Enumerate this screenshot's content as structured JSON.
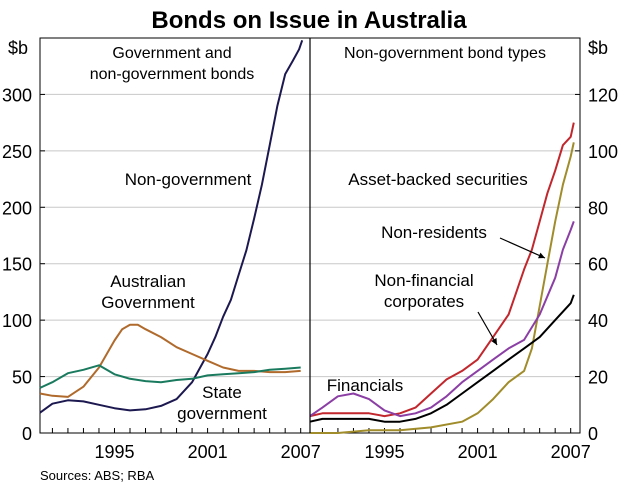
{
  "title": "Bonds on Issue in Australia",
  "source": "Sources: ABS; RBA",
  "chart_data": [
    {
      "type": "line",
      "subtitle": [
        "Government and",
        "non-government bonds"
      ],
      "yunit": "$b",
      "ylim": [
        0,
        350
      ],
      "yticks": [
        0,
        50,
        100,
        150,
        200,
        250,
        300
      ],
      "xlim": [
        1990.2,
        2007.6
      ],
      "xticks": [
        1995,
        2001,
        2007
      ],
      "grid": true,
      "series": [
        {
          "name": "Non-government",
          "label_lines": [
            "Non-government"
          ],
          "color": "#1c1850",
          "x": [
            1990.2,
            1991,
            1992,
            1993,
            1994,
            1995,
            1996,
            1997,
            1998,
            1999,
            2000,
            2001,
            2001.5,
            2002,
            2002.5,
            2003,
            2003.5,
            2004,
            2004.5,
            2005,
            2005.5,
            2006,
            2006.5,
            2006.9,
            2007.1
          ],
          "y": [
            18,
            26,
            29,
            28,
            25,
            22,
            20,
            21,
            24,
            30,
            45,
            70,
            85,
            103,
            118,
            140,
            162,
            190,
            220,
            255,
            290,
            318,
            330,
            340,
            348
          ]
        },
        {
          "name": "Australian Government",
          "label_lines": [
            "Australian",
            "Government"
          ],
          "color": "#b06a2c",
          "x": [
            1990.2,
            1991,
            1992,
            1993,
            1994,
            1995,
            1995.5,
            1996,
            1996.5,
            1997,
            1998,
            1999,
            2000,
            2001,
            2002,
            2003,
            2004,
            2005,
            2006,
            2007
          ],
          "y": [
            35,
            33,
            32,
            41,
            58,
            82,
            92,
            96,
            96,
            92,
            85,
            76,
            70,
            64,
            58,
            55,
            55,
            54,
            54,
            55
          ]
        },
        {
          "name": "State government",
          "label_lines": [
            "State",
            "government"
          ],
          "color": "#1a7a5e",
          "x": [
            1990.2,
            1991,
            1992,
            1993,
            1994,
            1995,
            1996,
            1997,
            1998,
            1999,
            2000,
            2001,
            2002,
            2003,
            2004,
            2005,
            2006,
            2007
          ],
          "y": [
            40,
            45,
            53,
            56,
            60,
            52,
            48,
            46,
            45,
            47,
            48,
            51,
            52,
            53,
            54,
            56,
            57,
            58
          ]
        }
      ]
    },
    {
      "type": "line",
      "subtitle": [
        "Non-government bond types"
      ],
      "yunit": "$b",
      "ylim": [
        0,
        140
      ],
      "yticks": [
        0,
        20,
        40,
        60,
        80,
        100,
        120
      ],
      "xlim": [
        1990.2,
        2007.6
      ],
      "xticks": [
        1995,
        2001,
        2007
      ],
      "grid": true,
      "series": [
        {
          "name": "Asset-backed securities",
          "label_lines": [
            "Asset-backed securities"
          ],
          "color": "#c1272d",
          "x": [
            1990.2,
            1991,
            1992,
            1993,
            1994,
            1995,
            1996,
            1997,
            1998,
            1999,
            2000,
            2001,
            2002,
            2003,
            2003.5,
            2004,
            2004.5,
            2005,
            2005.5,
            2006,
            2006.5,
            2007,
            2007.2
          ],
          "y": [
            6,
            7,
            7,
            7,
            7,
            6,
            7,
            9,
            14,
            19,
            22,
            26,
            34,
            42,
            50,
            58,
            65,
            75,
            85,
            93,
            102,
            105,
            110
          ]
        },
        {
          "name": "Non-residents",
          "label_lines": [
            "Non-residents"
          ],
          "color": "#a08c2a",
          "x": [
            1990.2,
            1992,
            1994,
            1996,
            1998,
            2000,
            2001,
            2002,
            2003,
            2004,
            2004.5,
            2005,
            2005.5,
            2006,
            2006.5,
            2007,
            2007.2
          ],
          "y": [
            0,
            0,
            1,
            1,
            2,
            4,
            7,
            12,
            18,
            22,
            30,
            45,
            60,
            75,
            88,
            98,
            103
          ]
        },
        {
          "name": "Non-financial corporates",
          "label_lines": [
            "Non-financial",
            "corporates"
          ],
          "color": "#000000",
          "x": [
            1990.2,
            1991,
            1992,
            1993,
            1994,
            1995,
            1996,
            1997,
            1998,
            1999,
            2000,
            2001,
            2002,
            2003,
            2004,
            2005,
            2006,
            2007,
            2007.2
          ],
          "y": [
            4,
            5,
            5,
            5,
            5,
            4,
            4,
            5,
            7,
            10,
            14,
            18,
            22,
            26,
            30,
            34,
            40,
            46,
            49
          ]
        },
        {
          "name": "Financials",
          "label_lines": [
            "Financials"
          ],
          "color": "#8b3fa5",
          "x": [
            1990.2,
            1991,
            1992,
            1993,
            1994,
            1995,
            1996,
            1997,
            1998,
            1999,
            2000,
            2001,
            2002,
            2003,
            2004,
            2005,
            2006,
            2006.5,
            2007,
            2007.2
          ],
          "y": [
            6,
            9,
            13,
            14,
            12,
            8,
            6,
            7,
            9,
            13,
            18,
            22,
            26,
            30,
            33,
            42,
            55,
            65,
            72,
            75
          ]
        }
      ]
    }
  ]
}
